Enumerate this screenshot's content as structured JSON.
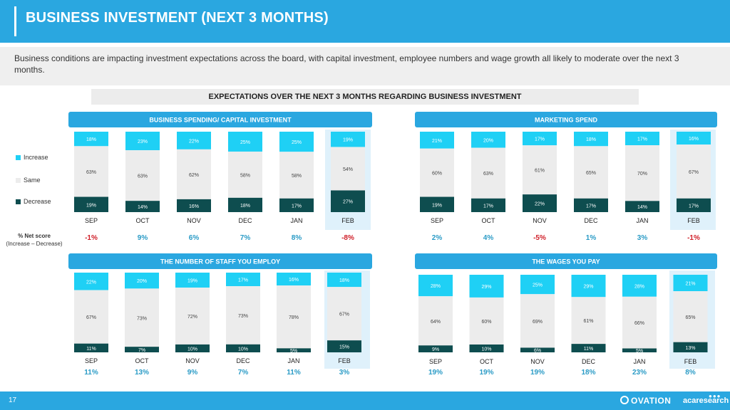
{
  "header": {
    "title": "BUSINESS INVESTMENT (NEXT 3 MONTHS)"
  },
  "summary": "Business conditions are impacting investment expectations across the board, with capital investment, employee numbers and wage growth all likely to moderate over the next 3 months.",
  "subtitle": "EXPECTATIONS OVER THE NEXT 3 MONTHS REGARDING BUSINESS INVESTMENT",
  "legend": {
    "increase": "Increase",
    "same": "Same",
    "decrease": "Decrease"
  },
  "net_label": {
    "line1": "% Net score",
    "line2": "(Increase – Decrease)"
  },
  "colors": {
    "header": "#2aa7e0",
    "increase": "#1fd0f5",
    "same": "#ececec",
    "decrease": "#0e4d4f",
    "positive": "#2a9bc6",
    "negative": "#d0202a",
    "highlight": "#dff1fb"
  },
  "footer": {
    "page": "17",
    "brand1": "OVATION",
    "brand2": "acaresearch"
  },
  "chart_data": [
    {
      "type": "bar",
      "title": "BUSINESS SPENDING/ CAPITAL INVESTMENT",
      "categories": [
        "SEP",
        "OCT",
        "NOV",
        "DEC",
        "JAN",
        "FEB"
      ],
      "series": [
        {
          "name": "Increase",
          "values": [
            18,
            23,
            22,
            25,
            25,
            19
          ]
        },
        {
          "name": "Same",
          "values": [
            63,
            63,
            62,
            58,
            58,
            54
          ]
        },
        {
          "name": "Decrease",
          "values": [
            19,
            14,
            16,
            18,
            17,
            27
          ]
        }
      ],
      "net": [
        "-1%",
        "9%",
        "6%",
        "7%",
        "8%",
        "-8%"
      ]
    },
    {
      "type": "bar",
      "title": "MARKETING SPEND",
      "categories": [
        "SEP",
        "OCT",
        "NOV",
        "DEC",
        "JAN",
        "FEB"
      ],
      "series": [
        {
          "name": "Increase",
          "values": [
            21,
            20,
            17,
            18,
            17,
            16
          ]
        },
        {
          "name": "Same",
          "values": [
            60,
            63,
            61,
            65,
            70,
            67
          ]
        },
        {
          "name": "Decrease",
          "values": [
            19,
            17,
            22,
            17,
            14,
            17
          ]
        }
      ],
      "net": [
        "2%",
        "4%",
        "-5%",
        "1%",
        "3%",
        "-1%"
      ]
    },
    {
      "type": "bar",
      "title": "THE NUMBER OF STAFF YOU EMPLOY",
      "categories": [
        "SEP",
        "OCT",
        "NOV",
        "DEC",
        "JAN",
        "FEB"
      ],
      "series": [
        {
          "name": "Increase",
          "values": [
            22,
            20,
            19,
            17,
            16,
            18
          ]
        },
        {
          "name": "Same",
          "values": [
            67,
            73,
            72,
            73,
            78,
            67
          ]
        },
        {
          "name": "Decrease",
          "values": [
            11,
            7,
            10,
            10,
            5,
            15
          ]
        }
      ],
      "net": [
        "11%",
        "13%",
        "9%",
        "7%",
        "11%",
        "3%"
      ]
    },
    {
      "type": "bar",
      "title": "THE WAGES YOU PAY",
      "categories": [
        "SEP",
        "OCT",
        "NOV",
        "DEC",
        "JAN",
        "FEB"
      ],
      "series": [
        {
          "name": "Increase",
          "values": [
            28,
            29,
            25,
            29,
            28,
            21
          ]
        },
        {
          "name": "Same",
          "values": [
            64,
            60,
            69,
            61,
            66,
            65
          ]
        },
        {
          "name": "Decrease",
          "values": [
            9,
            10,
            6,
            11,
            5,
            13
          ]
        }
      ],
      "net": [
        "19%",
        "19%",
        "19%",
        "18%",
        "23%",
        "8%"
      ]
    }
  ]
}
